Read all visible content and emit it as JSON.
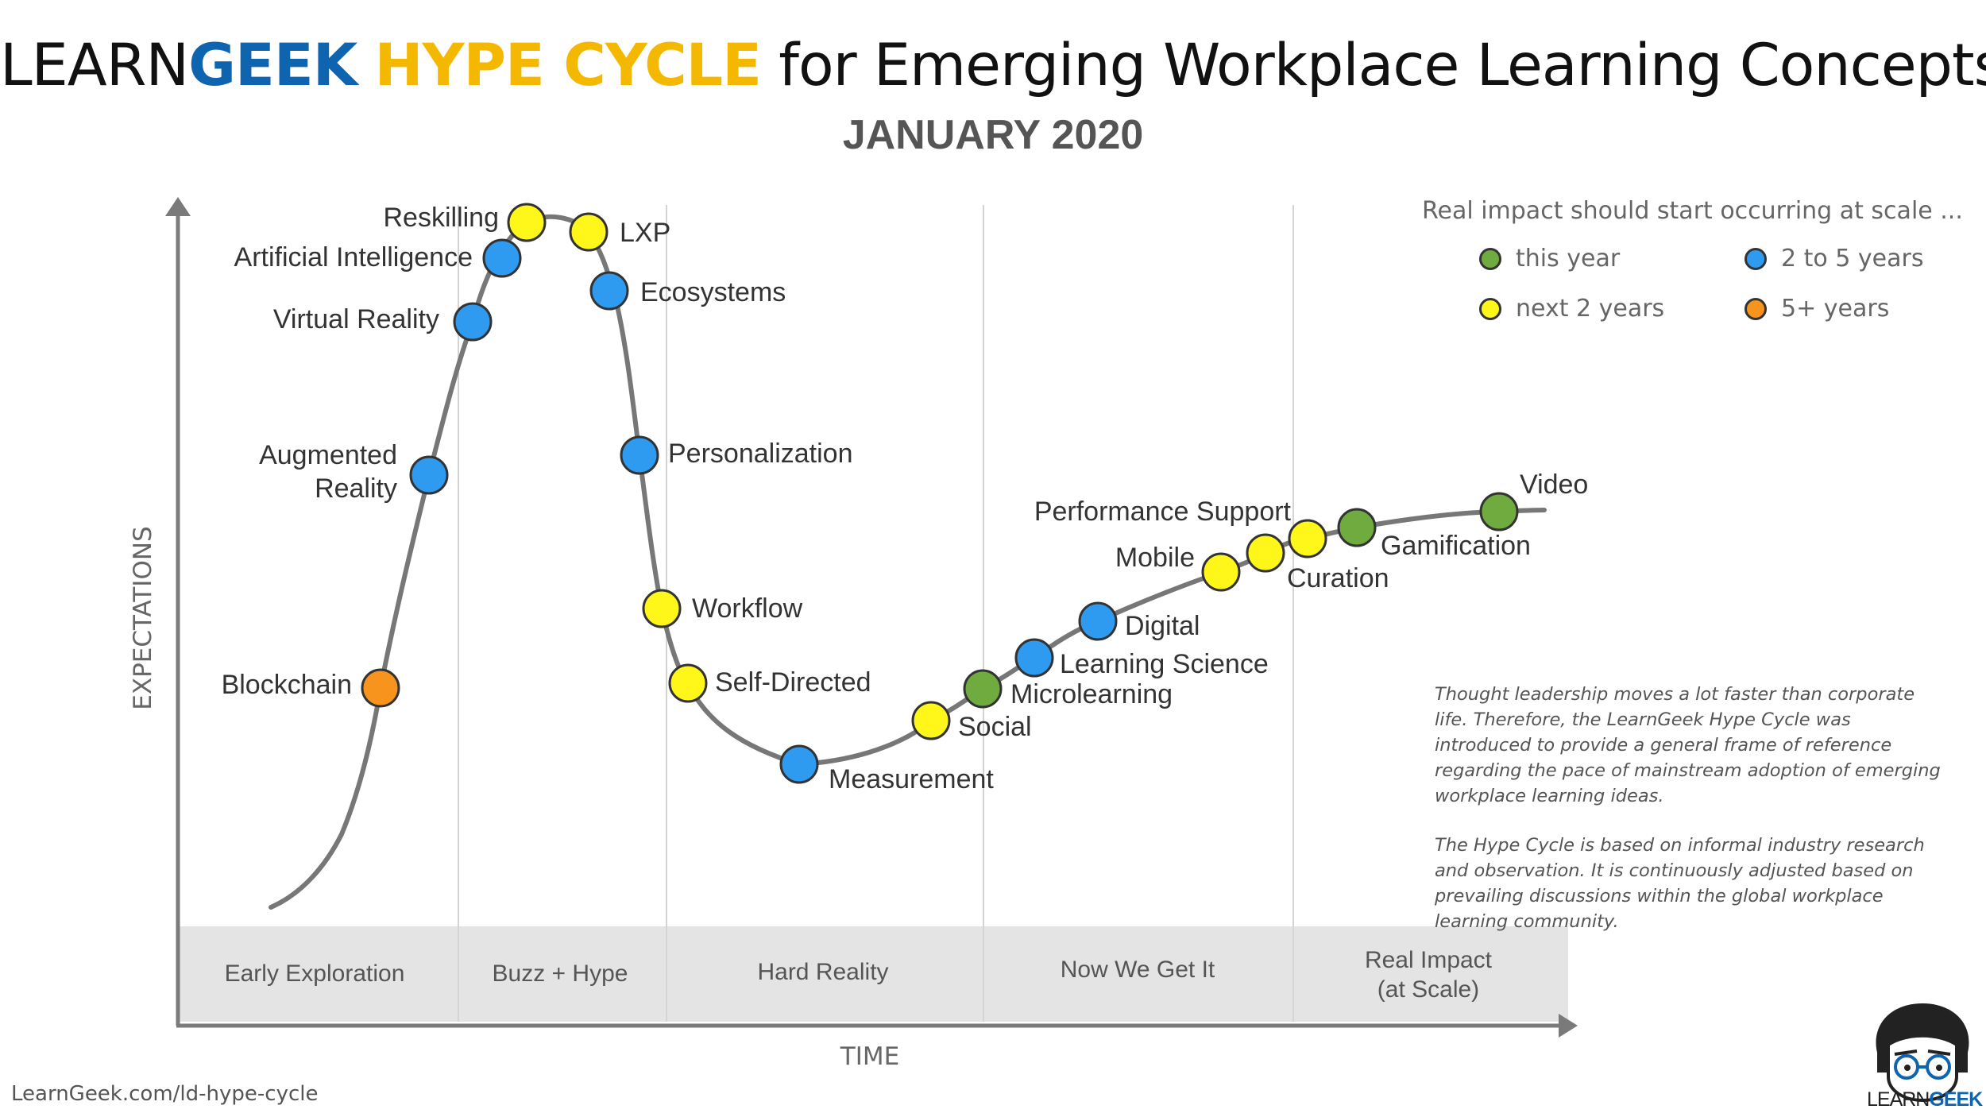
{
  "title": {
    "part1": "LEARN",
    "part2": "GEEK",
    "part3": "HYPE CYCLE",
    "part4": " for Emerging Workplace Learning Concepts"
  },
  "subtitle": "JANUARY 2020",
  "axes": {
    "y_label": "EXPECTATIONS",
    "x_label": "TIME"
  },
  "phases": [
    "Early Exploration",
    "Buzz + Hype",
    "Hard Reality",
    "Now We Get It",
    [
      "Real Impact",
      "(at Scale)"
    ]
  ],
  "legend": {
    "heading": "Real impact should start occurring at scale ...",
    "items": [
      {
        "label": "this year",
        "category": "green",
        "color": "#6fab3f"
      },
      {
        "label": "2 to 5 years",
        "category": "blue",
        "color": "#2f9bf0"
      },
      {
        "label": "next 2 years",
        "category": "yellow",
        "color": "#fff71a"
      },
      {
        "label": "5+ years",
        "category": "orange",
        "color": "#f7941d"
      }
    ]
  },
  "colors": {
    "green": "#6fab3f",
    "blue": "#2f9bf0",
    "yellow": "#fff71a",
    "orange": "#f7941d",
    "curve": "#777777"
  },
  "concepts": [
    {
      "label": "Blockchain",
      "category": "orange"
    },
    {
      "label": [
        "Augmented",
        "Reality"
      ],
      "category": "blue"
    },
    {
      "label": "Virtual Reality",
      "category": "blue"
    },
    {
      "label": "Artificial Intelligence",
      "category": "blue"
    },
    {
      "label": "Reskilling",
      "category": "yellow"
    },
    {
      "label": "LXP",
      "category": "yellow"
    },
    {
      "label": "Ecosystems",
      "category": "blue"
    },
    {
      "label": "Personalization",
      "category": "blue"
    },
    {
      "label": "Workflow",
      "category": "yellow"
    },
    {
      "label": "Self-Directed",
      "category": "yellow"
    },
    {
      "label": "Measurement",
      "category": "blue"
    },
    {
      "label": "Social",
      "category": "yellow"
    },
    {
      "label": "Microlearning",
      "category": "green"
    },
    {
      "label": "Learning Science",
      "category": "blue"
    },
    {
      "label": "Digital",
      "category": "blue"
    },
    {
      "label": "Mobile",
      "category": "yellow"
    },
    {
      "label": "Performance Support",
      "category": "yellow"
    },
    {
      "label": "Curation",
      "category": "yellow"
    },
    {
      "label": "Gamification",
      "category": "green"
    },
    {
      "label": "Video",
      "category": "green"
    }
  ],
  "note": [
    "Thought leadership moves a lot faster than corporate life. Therefore, the LearnGeek Hype Cycle was introduced to provide a general frame of reference regarding the pace of mainstream adoption of emerging workplace learning ideas.",
    "The Hype Cycle is based on informal industry research and observation. It is continuously adjusted based on prevailing discussions within the global workplace learning community."
  ],
  "footer_url": "LearnGeek.com/ld-hype-cycle",
  "logo": {
    "part1": "LEARN",
    "part2": "GEEK"
  }
}
